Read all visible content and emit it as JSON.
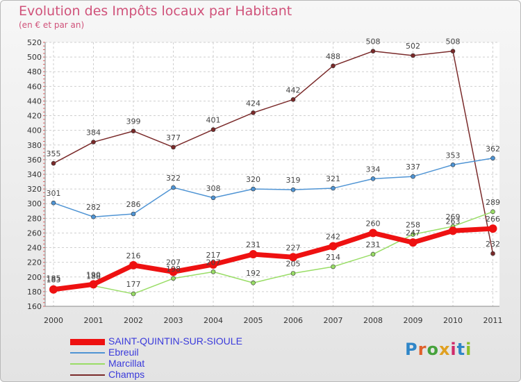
{
  "header": {
    "title": "Evolution des Impôts locaux par Habitant",
    "subtitle": "(en € et par an)"
  },
  "logo": {
    "text": "Proxiti",
    "colors": [
      "#2f86c8",
      "#e0602a",
      "#46a23c",
      "#e0a020",
      "#d02a6a",
      "#2f86c8",
      "#8bbf2a"
    ]
  },
  "chart_data": {
    "type": "line",
    "title": "Evolution des Impôts locaux par Habitant",
    "subtitle": "(en € et par an)",
    "x": [
      "2000",
      "2001",
      "2002",
      "2003",
      "2004",
      "2005",
      "2006",
      "2007",
      "2008",
      "2009",
      "2010",
      "2011"
    ],
    "ylim": [
      160,
      520
    ],
    "yticks": [
      160,
      180,
      200,
      220,
      240,
      260,
      280,
      300,
      320,
      340,
      360,
      380,
      400,
      420,
      440,
      460,
      480,
      500,
      520
    ],
    "grid": true,
    "legend_position": "bottom-left",
    "series": [
      {
        "name": "SAINT-QUINTIN-SUR-SIOULE",
        "color": "#ee1111",
        "values": [
          183,
          190,
          216,
          207,
          217,
          231,
          227,
          242,
          260,
          247,
          263,
          266
        ],
        "labels": [
          "183",
          "190",
          "216",
          "207",
          "217",
          "231",
          "227",
          "242",
          "260",
          "247",
          "263",
          "266"
        ]
      },
      {
        "name": "Ebreuil",
        "color": "#4f94d4",
        "values": [
          301,
          282,
          286,
          322,
          308,
          320,
          319,
          321,
          334,
          337,
          353,
          362
        ],
        "labels": [
          "301",
          "282",
          "286",
          "322",
          "308",
          "320",
          "319",
          "321",
          "334",
          "337",
          "353",
          "362"
        ]
      },
      {
        "name": "Marcillat",
        "color": "#99dd66",
        "values": [
          185,
          188,
          177,
          198,
          207,
          192,
          205,
          214,
          231,
          258,
          269,
          289
        ],
        "labels": [
          "185",
          "188",
          "177",
          "198",
          "207",
          "192",
          "205",
          "214",
          "231",
          "258",
          "269",
          "289"
        ]
      },
      {
        "name": "Champs",
        "color": "#7a2a2a",
        "values": [
          355,
          384,
          399,
          377,
          401,
          424,
          442,
          488,
          508,
          502,
          508,
          232
        ],
        "labels": [
          "355",
          "384",
          "399",
          "377",
          "401",
          "424",
          "442",
          "488",
          "508",
          "502",
          "508",
          "232"
        ]
      }
    ]
  }
}
